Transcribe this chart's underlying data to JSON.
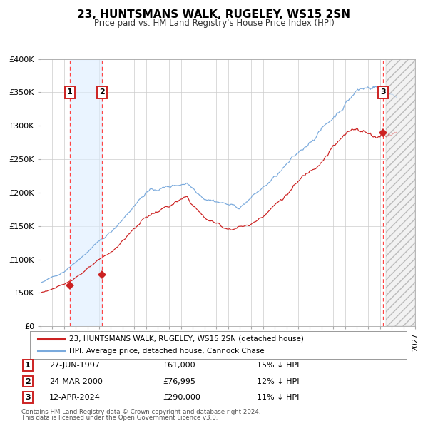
{
  "title": "23, HUNTSMANS WALK, RUGELEY, WS15 2SN",
  "subtitle": "Price paid vs. HM Land Registry's House Price Index (HPI)",
  "legend_line1": "23, HUNTSMANS WALK, RUGELEY, WS15 2SN (detached house)",
  "legend_line2": "HPI: Average price, detached house, Cannock Chase",
  "footnote1": "Contains HM Land Registry data © Crown copyright and database right 2024.",
  "footnote2": "This data is licensed under the Open Government Licence v3.0.",
  "transactions": [
    {
      "num": 1,
      "date": "27-JUN-1997",
      "price": 61000,
      "pct": "15%",
      "dir": "↓",
      "year": 1997.49
    },
    {
      "num": 2,
      "date": "24-MAR-2000",
      "price": 76995,
      "pct": "12%",
      "dir": "↓",
      "year": 2000.23
    },
    {
      "num": 3,
      "date": "12-APR-2024",
      "price": 290000,
      "pct": "11%",
      "dir": "↓",
      "year": 2024.28
    }
  ],
  "xmin": 1995,
  "xmax": 2027,
  "ymin": 0,
  "ymax": 400000,
  "yticks": [
    0,
    50000,
    100000,
    150000,
    200000,
    250000,
    300000,
    350000,
    400000
  ],
  "ytick_labels": [
    "£0",
    "£50K",
    "£100K",
    "£150K",
    "£200K",
    "£250K",
    "£300K",
    "£350K",
    "£400K"
  ],
  "grid_color": "#cccccc",
  "hpi_color": "#7aaadd",
  "price_color": "#cc2222",
  "marker_color": "#cc2222",
  "shade_between_color": "#ddeeff",
  "dashed_line_color": "#ff4444",
  "background_color": "#ffffff",
  "box_color": "#cc2222",
  "future_cutoff": 2024.5
}
